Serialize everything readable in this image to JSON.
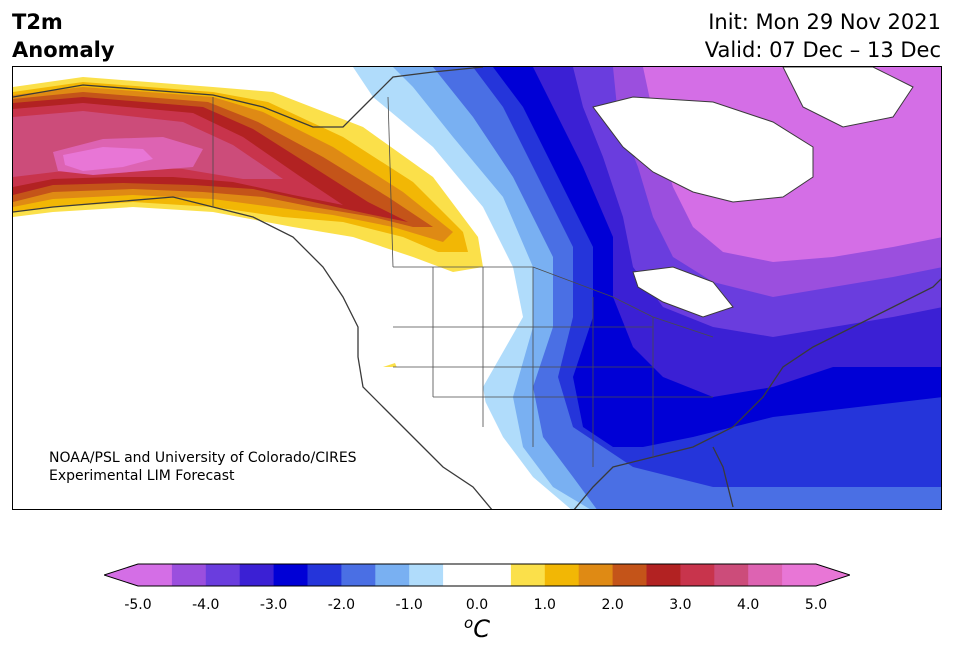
{
  "title": {
    "left_line1": "T2m",
    "left_line2": "Anomaly",
    "init": "Init: Mon 29 Nov 2021",
    "valid": "Valid: 07 Dec – 13 Dec"
  },
  "credit": {
    "line1": "NOAA/PSL and University of Colorado/CIRES",
    "line2": "Experimental LIM Forecast"
  },
  "colorbar": {
    "unit_base": "C",
    "unit_sup": "o",
    "ticks": [
      "-5.0",
      "-4.0",
      "-3.0",
      "-2.0",
      "-1.0",
      "0.0",
      "1.0",
      "2.0",
      "3.0",
      "4.0",
      "5.0"
    ],
    "tick_values": [
      -5,
      -4,
      -3,
      -2,
      -1,
      0,
      1,
      2,
      3,
      4,
      5
    ],
    "bounds": [
      -5.0,
      -4.5,
      -4.0,
      -3.5,
      -3.0,
      -2.5,
      -2.0,
      -1.5,
      -1.0,
      -0.5,
      0.5,
      1.0,
      1.5,
      2.0,
      2.5,
      3.0,
      3.5,
      4.0,
      4.5,
      5.0
    ],
    "colors": [
      "#d46ee6",
      "#9b4fde",
      "#6a3dde",
      "#3b20d4",
      "#0000d6",
      "#2535da",
      "#4a6fe4",
      "#79b0f2",
      "#b0dcfb",
      "#ffffff",
      "#fbe04a",
      "#f2b705",
      "#df8a14",
      "#c45419",
      "#b22222",
      "#c8344c",
      "#cc4c7a",
      "#dd63b2",
      "#e876d6"
    ],
    "extend_low": "#d46ee6",
    "extend_high": "#e876d6"
  },
  "map_colors": {
    "coast": "#3a3a3a",
    "border": "#4a4a4a"
  }
}
